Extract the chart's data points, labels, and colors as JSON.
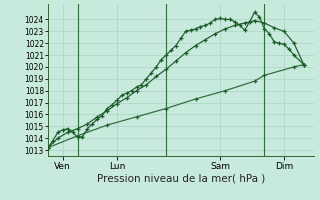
{
  "xlabel": "Pression niveau de la mer( hPa )",
  "bg_color": "#c8eadc",
  "grid_color": "#a8d4c4",
  "line_color": "#1a5c28",
  "vline_color": "#2d6e3a",
  "ylim_low": 1012.5,
  "ylim_high": 1025.3,
  "yticks": [
    1013,
    1014,
    1015,
    1016,
    1017,
    1018,
    1019,
    1020,
    1021,
    1022,
    1023,
    1024
  ],
  "xlim_low": 0,
  "xlim_high": 27,
  "xtick_pos": [
    1.5,
    7.0,
    17.5,
    24.0
  ],
  "xtick_labels": [
    "Ven",
    "Lun",
    "Sam",
    "Dim"
  ],
  "vline_x": [
    3.0,
    12.0,
    22.0
  ],
  "line1_x": [
    0,
    0.5,
    1,
    1.5,
    2,
    2.5,
    3,
    3.5,
    4,
    4.5,
    5,
    5.5,
    6,
    6.5,
    7,
    7.5,
    8,
    8.5,
    9,
    9.5,
    10,
    10.5,
    11,
    11.5,
    12,
    12.5,
    13,
    13.5,
    14,
    14.5,
    15,
    15.5,
    16,
    16.5,
    17,
    17.5,
    18,
    18.5,
    19,
    19.5,
    20,
    20.5,
    21,
    21.5,
    22,
    22.5,
    23,
    23.5,
    24,
    24.5,
    25,
    26
  ],
  "line1_y": [
    1013.2,
    1013.8,
    1014.5,
    1014.7,
    1014.8,
    1014.5,
    1014.1,
    1014.1,
    1014.8,
    1015.2,
    1015.6,
    1015.9,
    1016.5,
    1016.8,
    1017.2,
    1017.6,
    1017.8,
    1018.0,
    1018.3,
    1018.5,
    1019.0,
    1019.5,
    1020.0,
    1020.6,
    1021.0,
    1021.4,
    1021.8,
    1022.4,
    1023.0,
    1023.1,
    1023.2,
    1023.4,
    1023.5,
    1023.7,
    1024.0,
    1024.1,
    1024.0,
    1024.0,
    1023.8,
    1023.5,
    1023.1,
    1023.8,
    1024.6,
    1024.2,
    1023.2,
    1022.8,
    1022.1,
    1022.0,
    1021.9,
    1021.5,
    1021.0,
    1020.2
  ],
  "line2_x": [
    0,
    1,
    2,
    3,
    4,
    5,
    6,
    7,
    8,
    9,
    10,
    11,
    12,
    13,
    14,
    15,
    16,
    17,
    18,
    19,
    20,
    21,
    22,
    23,
    24,
    25,
    26
  ],
  "line2_y": [
    1013.2,
    1014.0,
    1014.5,
    1014.8,
    1015.2,
    1015.8,
    1016.3,
    1016.9,
    1017.4,
    1018.0,
    1018.5,
    1019.2,
    1019.8,
    1020.5,
    1021.2,
    1021.8,
    1022.3,
    1022.8,
    1023.2,
    1023.5,
    1023.7,
    1023.9,
    1023.7,
    1023.3,
    1023.0,
    1022.0,
    1020.2
  ],
  "line3_x": [
    0,
    3,
    6,
    9,
    12,
    15,
    18,
    21,
    22,
    25,
    26
  ],
  "line3_y": [
    1013.2,
    1014.2,
    1015.1,
    1015.8,
    1016.5,
    1017.3,
    1018.0,
    1018.8,
    1019.3,
    1020.0,
    1020.2
  ]
}
